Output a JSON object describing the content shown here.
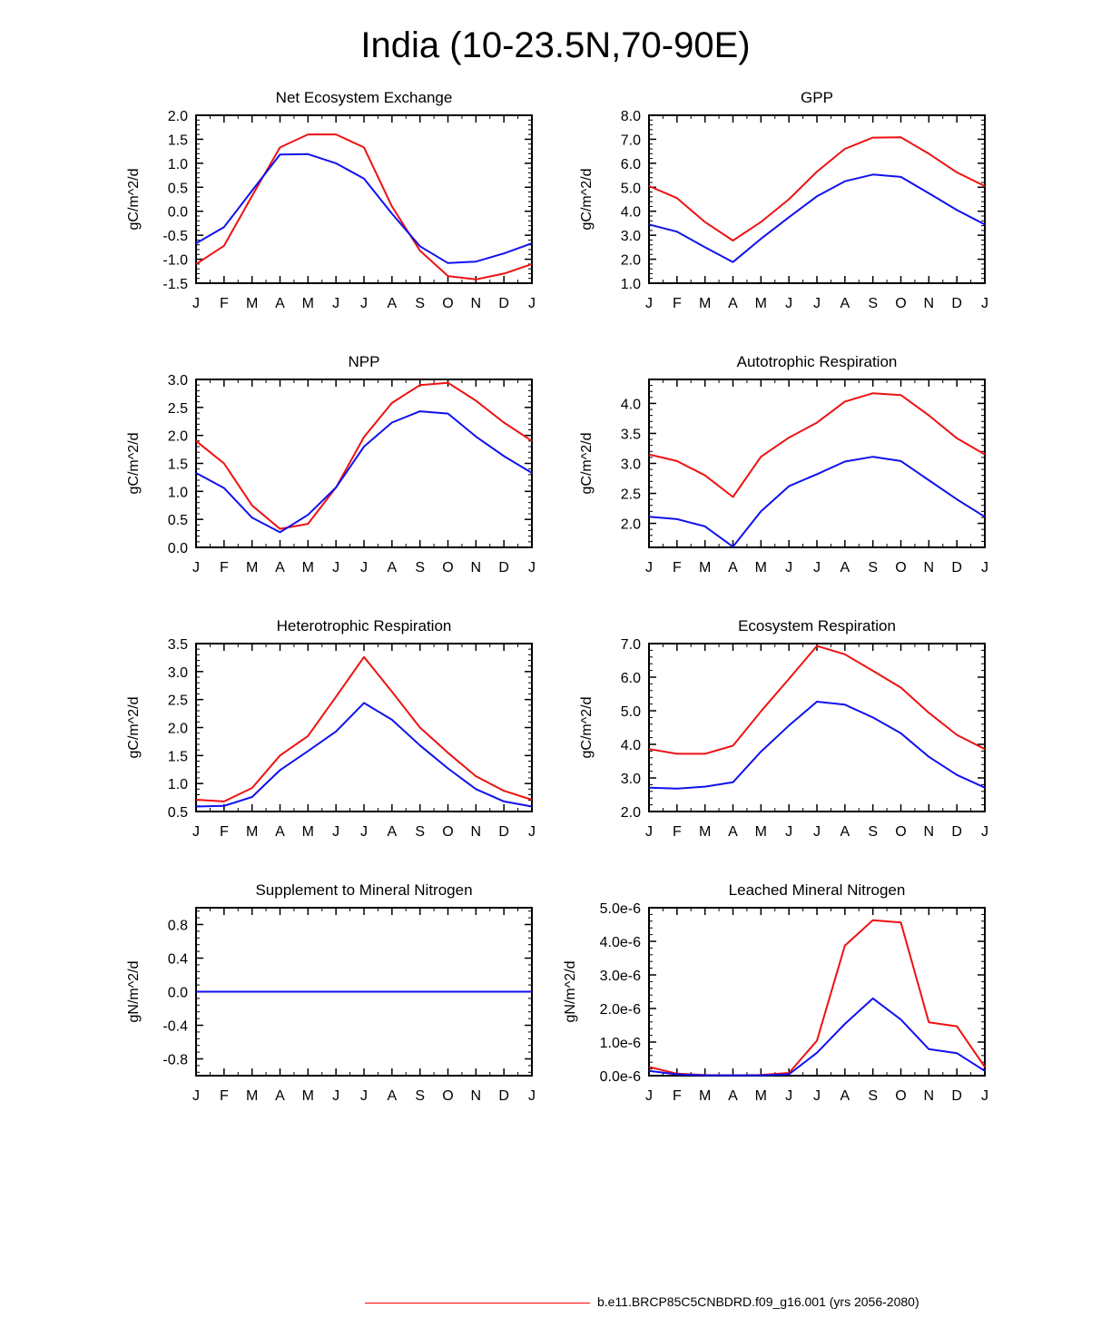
{
  "page": {
    "title": "India (10-23.5N,70-90E)",
    "legend_label": "b.e11.BRCP85C5CNBDRD.f09_g16.001 (yrs 2056-2080)",
    "legend_color": "#ff0000"
  },
  "series_colors": {
    "red": "#ee1111",
    "blue": "#1111ee"
  },
  "chart_data": [
    {
      "type": "line",
      "title": "Net Ecosystem Exchange",
      "xlabel": "",
      "ylabel": "gC/m^2/d",
      "categories": [
        "J",
        "F",
        "M",
        "A",
        "M",
        "J",
        "J",
        "A",
        "S",
        "O",
        "N",
        "D",
        "J"
      ],
      "ylim": [
        -1.5,
        2.0
      ],
      "yticks": [
        -1.5,
        -1.0,
        -0.5,
        0.0,
        0.5,
        1.0,
        1.5,
        2.0
      ],
      "ytick_labels": [
        "-1.5",
        "-1.0",
        "-0.5",
        "0.0",
        "0.5",
        "1.0",
        "1.5",
        "2.0"
      ],
      "series": [
        {
          "name": "red",
          "values": [
            -1.1,
            -0.72,
            0.32,
            1.33,
            1.6,
            1.6,
            1.33,
            0.1,
            -0.82,
            -1.35,
            -1.42,
            -1.3,
            -1.1
          ]
        },
        {
          "name": "blue",
          "values": [
            -0.67,
            -0.33,
            0.43,
            1.18,
            1.19,
            1.0,
            0.68,
            -0.05,
            -0.73,
            -1.08,
            -1.05,
            -0.88,
            -0.67
          ]
        }
      ]
    },
    {
      "type": "line",
      "title": "GPP",
      "xlabel": "",
      "ylabel": "gC/m^2/d",
      "categories": [
        "J",
        "F",
        "M",
        "A",
        "M",
        "J",
        "J",
        "A",
        "S",
        "O",
        "N",
        "D",
        "J"
      ],
      "ylim": [
        1.0,
        8.0
      ],
      "yticks": [
        1,
        2,
        3,
        4,
        5,
        6,
        7,
        8
      ],
      "ytick_labels": [
        "1.0",
        "2.0",
        "3.0",
        "4.0",
        "5.0",
        "6.0",
        "7.0",
        "8.0"
      ],
      "series": [
        {
          "name": "red",
          "values": [
            5.05,
            4.55,
            3.55,
            2.78,
            3.55,
            4.5,
            5.65,
            6.6,
            7.07,
            7.08,
            6.4,
            5.62,
            5.05
          ]
        },
        {
          "name": "blue",
          "values": [
            3.45,
            3.15,
            2.5,
            1.88,
            2.85,
            3.75,
            4.62,
            5.25,
            5.53,
            5.43,
            4.75,
            4.05,
            3.45
          ]
        }
      ]
    },
    {
      "type": "line",
      "title": "NPP",
      "xlabel": "",
      "ylabel": "gC/m^2/d",
      "categories": [
        "J",
        "F",
        "M",
        "A",
        "M",
        "J",
        "J",
        "A",
        "S",
        "O",
        "N",
        "D",
        "J"
      ],
      "ylim": [
        0.0,
        3.0
      ],
      "yticks": [
        0,
        0.5,
        1,
        1.5,
        2,
        2.5,
        3
      ],
      "ytick_labels": [
        "0.0",
        "0.5",
        "1.0",
        "1.5",
        "2.0",
        "2.5",
        "3.0"
      ],
      "series": [
        {
          "name": "red",
          "values": [
            1.9,
            1.5,
            0.75,
            0.33,
            0.42,
            1.07,
            1.97,
            2.58,
            2.9,
            2.94,
            2.62,
            2.23,
            1.9
          ]
        },
        {
          "name": "blue",
          "values": [
            1.33,
            1.06,
            0.53,
            0.27,
            0.58,
            1.07,
            1.8,
            2.23,
            2.43,
            2.39,
            1.98,
            1.63,
            1.33
          ]
        }
      ]
    },
    {
      "type": "line",
      "title": "Autotrophic Respiration",
      "xlabel": "",
      "ylabel": "gC/m^2/d",
      "categories": [
        "J",
        "F",
        "M",
        "A",
        "M",
        "J",
        "J",
        "A",
        "S",
        "O",
        "N",
        "D",
        "J"
      ],
      "ylim": [
        1.6,
        4.4
      ],
      "yticks": [
        2,
        2.5,
        3,
        3.5,
        4
      ],
      "ytick_labels": [
        "2.0",
        "2.5",
        "3.0",
        "3.5",
        "4.0"
      ],
      "series": [
        {
          "name": "red",
          "values": [
            3.15,
            3.04,
            2.8,
            2.44,
            3.11,
            3.43,
            3.68,
            4.03,
            4.17,
            4.14,
            3.8,
            3.42,
            3.15
          ]
        },
        {
          "name": "blue",
          "values": [
            2.11,
            2.07,
            1.95,
            1.61,
            2.2,
            2.62,
            2.82,
            3.03,
            3.11,
            3.04,
            2.72,
            2.4,
            2.11
          ]
        }
      ]
    },
    {
      "type": "line",
      "title": "Heterotrophic Respiration",
      "xlabel": "",
      "ylabel": "gC/m^2/d",
      "categories": [
        "J",
        "F",
        "M",
        "A",
        "M",
        "J",
        "J",
        "A",
        "S",
        "O",
        "N",
        "D",
        "J"
      ],
      "ylim": [
        0.5,
        3.5
      ],
      "yticks": [
        0.5,
        1,
        1.5,
        2,
        2.5,
        3,
        3.5
      ],
      "ytick_labels": [
        "0.5",
        "1.0",
        "1.5",
        "2.0",
        "2.5",
        "3.0",
        "3.5"
      ],
      "series": [
        {
          "name": "red",
          "values": [
            0.71,
            0.68,
            0.92,
            1.5,
            1.85,
            2.55,
            3.26,
            2.64,
            2.0,
            1.55,
            1.13,
            0.87,
            0.71
          ]
        },
        {
          "name": "blue",
          "values": [
            0.59,
            0.6,
            0.76,
            1.24,
            1.58,
            1.93,
            2.44,
            2.14,
            1.68,
            1.27,
            0.9,
            0.68,
            0.59
          ]
        }
      ]
    },
    {
      "type": "line",
      "title": "Ecosystem Respiration",
      "xlabel": "",
      "ylabel": "gC/m^2/d",
      "categories": [
        "J",
        "F",
        "M",
        "A",
        "M",
        "J",
        "J",
        "A",
        "S",
        "O",
        "N",
        "D",
        "J"
      ],
      "ylim": [
        2.0,
        7.0
      ],
      "yticks": [
        2,
        3,
        4,
        5,
        6,
        7
      ],
      "ytick_labels": [
        "2.0",
        "3.0",
        "4.0",
        "5.0",
        "6.0",
        "7.0"
      ],
      "series": [
        {
          "name": "red",
          "values": [
            3.86,
            3.72,
            3.72,
            3.96,
            4.98,
            5.95,
            6.93,
            6.68,
            6.19,
            5.69,
            4.94,
            4.28,
            3.86
          ]
        },
        {
          "name": "blue",
          "values": [
            2.71,
            2.68,
            2.74,
            2.87,
            3.78,
            4.56,
            5.27,
            5.18,
            4.8,
            4.33,
            3.63,
            3.09,
            2.71
          ]
        }
      ]
    },
    {
      "type": "line",
      "title": "Supplement to Mineral Nitrogen",
      "xlabel": "",
      "ylabel": "gN/m^2/d",
      "categories": [
        "J",
        "F",
        "M",
        "A",
        "M",
        "J",
        "J",
        "A",
        "S",
        "O",
        "N",
        "D",
        "J"
      ],
      "ylim": [
        -1.0,
        1.0
      ],
      "yticks": [
        -0.8,
        -0.4,
        0.0,
        0.4,
        0.8
      ],
      "ytick_labels": [
        "-0.8",
        "-0.4",
        "0.0",
        "0.4",
        "0.8"
      ],
      "series": [
        {
          "name": "red",
          "values": [
            0,
            0,
            0,
            0,
            0,
            0,
            0,
            0,
            0,
            0,
            0,
            0,
            0
          ]
        },
        {
          "name": "blue",
          "values": [
            0,
            0,
            0,
            0,
            0,
            0,
            0,
            0,
            0,
            0,
            0,
            0,
            0
          ]
        }
      ]
    },
    {
      "type": "line",
      "title": "Leached Mineral Nitrogen",
      "xlabel": "",
      "ylabel": "gN/m^2/d",
      "categories": [
        "J",
        "F",
        "M",
        "A",
        "M",
        "J",
        "J",
        "A",
        "S",
        "O",
        "N",
        "D",
        "J"
      ],
      "ylim": [
        0,
        5e-06
      ],
      "yticks": [
        0,
        1e-06,
        2e-06,
        3e-06,
        4e-06,
        5e-06
      ],
      "ytick_labels": [
        "0.0e-6",
        "1.0e-6",
        "2.0e-6",
        "3.0e-6",
        "4.0e-6",
        "5.0e-6"
      ],
      "series": [
        {
          "name": "red",
          "values": [
            2.6e-07,
            6e-08,
            2e-08,
            1e-08,
            2e-08,
            8e-08,
            1.04e-06,
            3.87e-06,
            4.63e-06,
            4.56e-06,
            1.59e-06,
            1.47e-06,
            2.6e-07
          ]
        },
        {
          "name": "blue",
          "values": [
            1.4e-07,
            4e-08,
            1e-08,
            1e-08,
            1e-08,
            4e-08,
            6.8e-07,
            1.54e-06,
            2.3e-06,
            1.67e-06,
            7.9e-07,
            6.7e-07,
            1.4e-07
          ]
        }
      ]
    }
  ]
}
